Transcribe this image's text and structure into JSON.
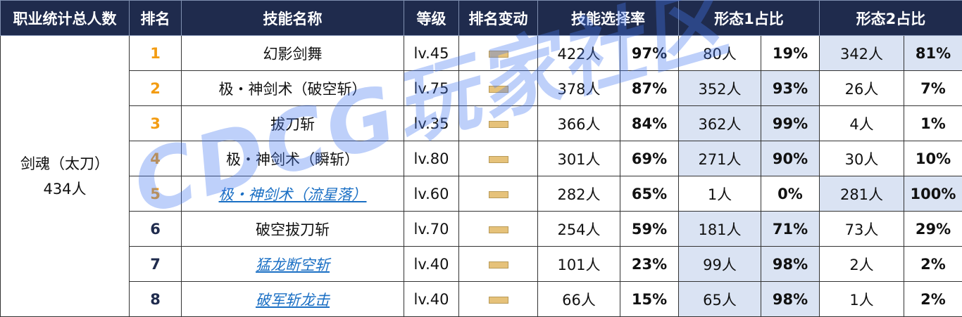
{
  "header": [
    "职业统计总人数",
    "排名",
    "技能名称",
    "等级",
    "排名变动",
    "技能选择率",
    "形态1占比",
    "形态2占比"
  ],
  "group": {
    "profession": "剑魂（太刀）",
    "total": "434人"
  },
  "rows": [
    {
      "rank": "1",
      "skill": "幻影剑舞",
      "link": false,
      "level": "lv.45",
      "count": "422人",
      "rate": "97%",
      "form1_count": "80人",
      "form1_pct": "19%",
      "form2_count": "342人",
      "form2_pct": "81%",
      "highlight": "form2"
    },
    {
      "rank": "2",
      "skill": "极・神剑术（破空斩）",
      "link": false,
      "level": "lv.75",
      "count": "378人",
      "rate": "87%",
      "form1_count": "352人",
      "form1_pct": "93%",
      "form2_count": "26人",
      "form2_pct": "7%",
      "highlight": "form1"
    },
    {
      "rank": "3",
      "skill": "拔刀斩",
      "link": false,
      "level": "lv.35",
      "count": "366人",
      "rate": "84%",
      "form1_count": "362人",
      "form1_pct": "99%",
      "form2_count": "4人",
      "form2_pct": "1%",
      "highlight": "form1"
    },
    {
      "rank": "4",
      "skill": "极・神剑术（瞬斩）",
      "link": false,
      "level": "lv.80",
      "count": "301人",
      "rate": "69%",
      "form1_count": "271人",
      "form1_pct": "90%",
      "form2_count": "30人",
      "form2_pct": "10%",
      "highlight": "form1"
    },
    {
      "rank": "5",
      "skill": "极・神剑术（流星落）",
      "link": true,
      "level": "lv.60",
      "count": "282人",
      "rate": "65%",
      "form1_count": "1人",
      "form1_pct": "0%",
      "form2_count": "281人",
      "form2_pct": "100%",
      "highlight": "form2"
    },
    {
      "rank": "6",
      "skill": "破空拔刀斩",
      "link": false,
      "level": "lv.70",
      "count": "254人",
      "rate": "59%",
      "form1_count": "181人",
      "form1_pct": "71%",
      "form2_count": "73人",
      "form2_pct": "29%",
      "highlight": "form1"
    },
    {
      "rank": "7",
      "skill": "猛龙断空斩",
      "link": true,
      "level": "lv.40",
      "count": "101人",
      "rate": "23%",
      "form1_count": "99人",
      "form1_pct": "98%",
      "form2_count": "2人",
      "form2_pct": "2%",
      "highlight": "form1"
    },
    {
      "rank": "8",
      "skill": "破军斩龙击",
      "link": true,
      "level": "lv.40",
      "count": "66人",
      "rate": "15%",
      "form1_count": "65人",
      "form1_pct": "98%",
      "form2_count": "1人",
      "form2_pct": "2%",
      "highlight": "form1"
    }
  ],
  "watermark": "CDCG玩家社区"
}
